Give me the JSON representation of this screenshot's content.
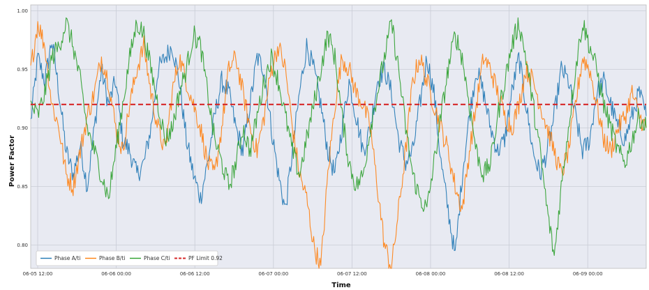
{
  "chart_data": {
    "type": "line",
    "title": "",
    "xlabel": "Time",
    "ylabel": "Power Factor",
    "ylim": [
      0.78,
      1.005
    ],
    "x_ticks": [
      "06-05 12:00",
      "06-06 00:00",
      "06-06 12:00",
      "06-07 00:00",
      "06-07 12:00",
      "06-08 00:00",
      "06-08 12:00",
      "06-09 00:00"
    ],
    "y_ticks": [
      "1.00",
      "0.95",
      "0.90",
      "0.85",
      "0.80"
    ],
    "y_tick_values": [
      1.0,
      0.95,
      0.9,
      0.85,
      0.8
    ],
    "grid": true,
    "legend_position": "bottom-left",
    "limit_value": 0.92,
    "series": [
      {
        "name": "Phase A/ti",
        "color": "#1f77b4",
        "values": [
          0.905,
          0.96,
          0.94,
          0.975,
          0.93,
          0.88,
          0.86,
          0.885,
          0.85,
          0.9,
          0.95,
          0.92,
          0.94,
          0.89,
          0.88,
          0.86,
          0.87,
          0.9,
          0.95,
          0.96,
          0.97,
          0.94,
          0.89,
          0.86,
          0.84,
          0.87,
          0.91,
          0.94,
          0.93,
          0.9,
          0.88,
          0.92,
          0.96,
          0.95,
          0.9,
          0.86,
          0.83,
          0.88,
          0.93,
          0.97,
          0.95,
          0.92,
          0.88,
          0.86,
          0.9,
          0.94,
          0.91,
          0.88,
          0.9,
          0.94,
          0.95,
          0.93,
          0.89,
          0.87,
          0.88,
          0.92,
          0.96,
          0.93,
          0.87,
          0.83,
          0.79,
          0.86,
          0.91,
          0.95,
          0.93,
          0.9,
          0.88,
          0.89,
          0.93,
          0.96,
          0.92,
          0.88,
          0.86,
          0.88,
          0.91,
          0.95,
          0.94,
          0.91,
          0.88,
          0.89,
          0.93,
          0.94,
          0.92,
          0.9,
          0.89,
          0.91,
          0.93,
          0.91
        ]
      },
      {
        "name": "Phase B/ti",
        "color": "#ff7f0e",
        "values": [
          0.95,
          0.99,
          0.97,
          0.92,
          0.9,
          0.86,
          0.85,
          0.88,
          0.91,
          0.93,
          0.96,
          0.94,
          0.9,
          0.88,
          0.92,
          0.95,
          0.97,
          0.93,
          0.9,
          0.88,
          0.93,
          0.96,
          0.94,
          0.92,
          0.9,
          0.87,
          0.86,
          0.9,
          0.95,
          0.96,
          0.93,
          0.9,
          0.88,
          0.91,
          0.95,
          0.97,
          0.95,
          0.9,
          0.86,
          0.84,
          0.8,
          0.78,
          0.86,
          0.92,
          0.96,
          0.95,
          0.93,
          0.92,
          0.9,
          0.85,
          0.8,
          0.78,
          0.83,
          0.88,
          0.94,
          0.96,
          0.94,
          0.92,
          0.9,
          0.88,
          0.85,
          0.83,
          0.88,
          0.92,
          0.96,
          0.95,
          0.93,
          0.91,
          0.9,
          0.92,
          0.95,
          0.94,
          0.92,
          0.9,
          0.88,
          0.86,
          0.88,
          0.92,
          0.96,
          0.95,
          0.92,
          0.89,
          0.88,
          0.9,
          0.91,
          0.93,
          0.91,
          0.9
        ]
      },
      {
        "name": "Phase C/ti",
        "color": "#2ca02c",
        "values": [
          0.92,
          0.91,
          0.93,
          0.96,
          0.97,
          0.99,
          0.97,
          0.94,
          0.9,
          0.88,
          0.86,
          0.84,
          0.88,
          0.92,
          0.96,
          0.99,
          0.98,
          0.95,
          0.92,
          0.89,
          0.9,
          0.93,
          0.95,
          0.98,
          0.97,
          0.93,
          0.89,
          0.87,
          0.85,
          0.87,
          0.9,
          0.88,
          0.91,
          0.94,
          0.96,
          0.94,
          0.91,
          0.88,
          0.86,
          0.89,
          0.92,
          0.95,
          0.98,
          0.96,
          0.91,
          0.87,
          0.85,
          0.86,
          0.9,
          0.93,
          0.96,
          0.99,
          0.95,
          0.9,
          0.86,
          0.84,
          0.83,
          0.87,
          0.91,
          0.95,
          0.98,
          0.96,
          0.92,
          0.88,
          0.86,
          0.87,
          0.91,
          0.94,
          0.97,
          0.99,
          0.96,
          0.92,
          0.88,
          0.83,
          0.79,
          0.85,
          0.9,
          0.95,
          0.99,
          0.97,
          0.95,
          0.92,
          0.9,
          0.88,
          0.87,
          0.89,
          0.91,
          0.9
        ]
      },
      {
        "name": "PF Limit 0.92",
        "color": "#d62728",
        "dashed": true,
        "constant": 0.92
      }
    ]
  }
}
